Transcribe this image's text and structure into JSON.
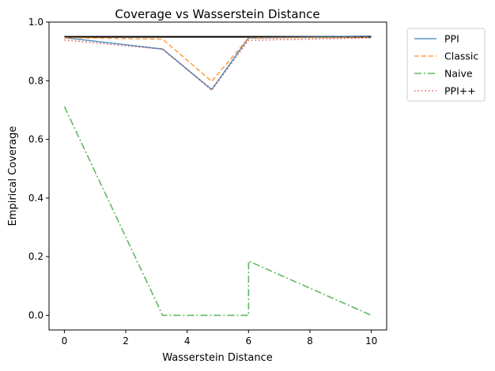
{
  "chart_data": {
    "type": "line",
    "title": "Coverage vs Wasserstein Distance",
    "xlabel": "Wasserstein Distance",
    "ylabel": "Empirical Coverage",
    "xlim": [
      -0.5,
      10.5
    ],
    "ylim": [
      -0.05,
      1.0
    ],
    "x_ticks": [
      0,
      2,
      4,
      6,
      8,
      10
    ],
    "y_ticks": [
      0.0,
      0.2,
      0.4,
      0.6,
      0.8,
      1.0
    ],
    "y_tick_labels": [
      "0.0",
      "0.2",
      "0.4",
      "0.6",
      "0.8",
      "1.0"
    ],
    "grid": false,
    "legend_position": "outside-top-right",
    "reference_line": {
      "y": 0.95,
      "x_range": [
        0,
        10
      ],
      "color": "#000000"
    },
    "series": [
      {
        "name": "PPI",
        "color": "#1f77b4",
        "dash": "solid",
        "x": [
          0,
          3.2,
          4.8,
          6.0,
          10.0
        ],
        "y": [
          0.947,
          0.908,
          0.77,
          0.946,
          0.952
        ]
      },
      {
        "name": "Classic",
        "color": "#ff7f0e",
        "dash": "dashed",
        "x": [
          0,
          3.2,
          4.8,
          6.0,
          10.0
        ],
        "y": [
          0.947,
          0.942,
          0.798,
          0.946,
          0.948
        ]
      },
      {
        "name": "Naive",
        "color": "#2ca02c",
        "dash": "dashdot",
        "x": [
          0,
          3.2,
          6.0,
          6.0,
          10.0
        ],
        "y": [
          0.712,
          0.0,
          0.0,
          0.185,
          0.0
        ]
      },
      {
        "name": "PPI++",
        "color": "#d62728",
        "dash": "dotted",
        "x": [
          0,
          3.2,
          4.8,
          6.0,
          10.0
        ],
        "y": [
          0.939,
          0.908,
          0.768,
          0.938,
          0.946
        ]
      }
    ]
  }
}
